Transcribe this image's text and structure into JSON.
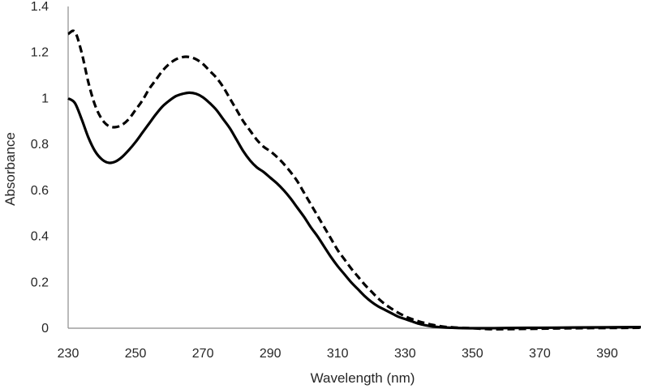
{
  "chart_data": {
    "type": "line",
    "title": "",
    "xlabel": "Wavelength (nm)",
    "ylabel": "Absorbance",
    "xlim": [
      230,
      400
    ],
    "ylim": [
      0,
      1.4
    ],
    "xticks": [
      "230",
      "250",
      "270",
      "290",
      "310",
      "330",
      "350",
      "370",
      "390"
    ],
    "yticks": [
      "0",
      "0.2",
      "0.4",
      "0.6",
      "0.8",
      "1",
      "1.2",
      "1.4"
    ],
    "grid": false,
    "legend": "none",
    "colors": {
      "line": "#000000",
      "axis": "#8c8c8c",
      "text": "#262626"
    },
    "series": [
      {
        "name": "solid",
        "style": "solid",
        "x": [
          230,
          232,
          234,
          236,
          238,
          240,
          242,
          244,
          246,
          248,
          250,
          252,
          254,
          256,
          258,
          260,
          262,
          264,
          266,
          268,
          270,
          272,
          274,
          276,
          278,
          280,
          282,
          284,
          286,
          288,
          290,
          292,
          294,
          296,
          298,
          300,
          302,
          304,
          306,
          308,
          310,
          312,
          314,
          316,
          318,
          320,
          322,
          324,
          326,
          328,
          330,
          332,
          334,
          336,
          338,
          340,
          342,
          344,
          346,
          350,
          355,
          360,
          370,
          380,
          390,
          400
        ],
        "y": [
          1.0,
          0.98,
          0.91,
          0.83,
          0.77,
          0.735,
          0.72,
          0.725,
          0.745,
          0.775,
          0.81,
          0.85,
          0.89,
          0.93,
          0.965,
          0.99,
          1.01,
          1.02,
          1.025,
          1.02,
          1.005,
          0.98,
          0.95,
          0.91,
          0.87,
          0.82,
          0.77,
          0.73,
          0.7,
          0.68,
          0.655,
          0.63,
          0.6,
          0.565,
          0.525,
          0.485,
          0.44,
          0.4,
          0.355,
          0.31,
          0.27,
          0.235,
          0.2,
          0.17,
          0.14,
          0.115,
          0.095,
          0.08,
          0.065,
          0.05,
          0.04,
          0.03,
          0.02,
          0.013,
          0.008,
          0.005,
          0.003,
          0.002,
          0.001,
          0.0,
          0.0,
          0.001,
          0.002,
          0.003,
          0.004,
          0.005
        ]
      },
      {
        "name": "dashed",
        "style": "dashed",
        "x": [
          230,
          232,
          234,
          236,
          238,
          240,
          242,
          244,
          246,
          248,
          250,
          252,
          254,
          256,
          258,
          260,
          262,
          264,
          266,
          268,
          270,
          272,
          274,
          276,
          278,
          280,
          282,
          284,
          286,
          288,
          290,
          292,
          294,
          296,
          298,
          300,
          302,
          304,
          306,
          308,
          310,
          312,
          314,
          316,
          318,
          320,
          322,
          324,
          326,
          328,
          330,
          332,
          334,
          336,
          338,
          340,
          342,
          344,
          346,
          350,
          355,
          360,
          370,
          380,
          390,
          400
        ],
        "y": [
          1.28,
          1.29,
          1.2,
          1.07,
          0.97,
          0.91,
          0.88,
          0.875,
          0.885,
          0.91,
          0.95,
          0.99,
          1.04,
          1.08,
          1.12,
          1.15,
          1.17,
          1.18,
          1.18,
          1.17,
          1.15,
          1.12,
          1.09,
          1.05,
          1.0,
          0.95,
          0.9,
          0.86,
          0.82,
          0.79,
          0.77,
          0.745,
          0.715,
          0.68,
          0.64,
          0.59,
          0.54,
          0.49,
          0.44,
          0.39,
          0.34,
          0.3,
          0.26,
          0.225,
          0.19,
          0.16,
          0.13,
          0.105,
          0.085,
          0.067,
          0.052,
          0.04,
          0.03,
          0.022,
          0.015,
          0.01,
          0.006,
          0.004,
          0.002,
          0.0,
          -0.004,
          -0.004,
          -0.002,
          0.0,
          0.001,
          0.002
        ]
      }
    ]
  }
}
